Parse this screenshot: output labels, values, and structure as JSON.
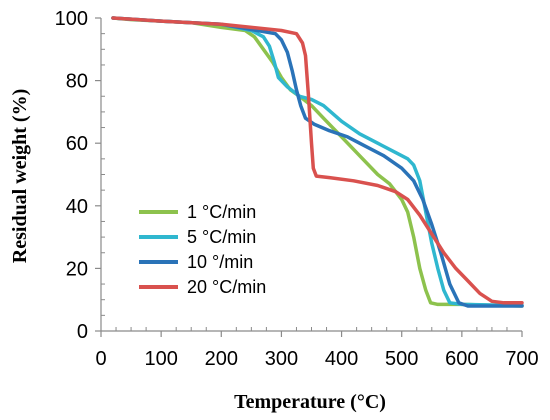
{
  "chart_data": {
    "type": "line",
    "title": "",
    "xlabel": "Temperature (°C)",
    "ylabel": "Residual weight (%)",
    "xlim": [
      0,
      700
    ],
    "ylim": [
      0,
      100
    ],
    "x_ticks": [
      0,
      100,
      200,
      300,
      400,
      500,
      600,
      700
    ],
    "y_ticks": [
      0,
      20,
      40,
      60,
      80,
      100
    ],
    "x_tick_labels": [
      "0",
      "100",
      "200",
      "300",
      "400",
      "500",
      "600",
      "700"
    ],
    "y_tick_labels": [
      "0",
      "20",
      "40",
      "60",
      "80",
      "100"
    ],
    "grid": false,
    "legend_position": "lower-left",
    "series": [
      {
        "name": "1 °C/min",
        "color": "#8dc24d",
        "points": [
          [
            20,
            100
          ],
          [
            50,
            99.5
          ],
          [
            100,
            99
          ],
          [
            150,
            98.5
          ],
          [
            200,
            97
          ],
          [
            240,
            96
          ],
          [
            255,
            94
          ],
          [
            270,
            90
          ],
          [
            285,
            86
          ],
          [
            300,
            81
          ],
          [
            315,
            77
          ],
          [
            330,
            75
          ],
          [
            350,
            72
          ],
          [
            370,
            68
          ],
          [
            400,
            62
          ],
          [
            430,
            56
          ],
          [
            460,
            50
          ],
          [
            480,
            47
          ],
          [
            500,
            42
          ],
          [
            510,
            38
          ],
          [
            520,
            30
          ],
          [
            530,
            20
          ],
          [
            540,
            13
          ],
          [
            548,
            9
          ],
          [
            560,
            8.5
          ],
          [
            600,
            8.5
          ],
          [
            650,
            8.2
          ],
          [
            700,
            8
          ]
        ]
      },
      {
        "name": "5 °C/min",
        "color": "#2fb7cf",
        "points": [
          [
            20,
            100
          ],
          [
            100,
            99
          ],
          [
            200,
            98
          ],
          [
            250,
            96
          ],
          [
            270,
            94
          ],
          [
            280,
            91
          ],
          [
            288,
            86
          ],
          [
            295,
            81
          ],
          [
            310,
            78
          ],
          [
            330,
            75
          ],
          [
            350,
            74
          ],
          [
            370,
            72
          ],
          [
            400,
            67
          ],
          [
            430,
            63
          ],
          [
            460,
            60
          ],
          [
            490,
            57
          ],
          [
            510,
            55
          ],
          [
            520,
            53
          ],
          [
            530,
            48
          ],
          [
            540,
            38
          ],
          [
            550,
            28
          ],
          [
            560,
            20
          ],
          [
            570,
            13
          ],
          [
            580,
            9
          ],
          [
            600,
            8.5
          ],
          [
            650,
            8.3
          ],
          [
            700,
            8.2
          ]
        ]
      },
      {
        "name": "10 °/min",
        "color": "#2a73b8",
        "points": [
          [
            20,
            100
          ],
          [
            100,
            99
          ],
          [
            200,
            98
          ],
          [
            260,
            96
          ],
          [
            290,
            95
          ],
          [
            300,
            93
          ],
          [
            310,
            89
          ],
          [
            318,
            83
          ],
          [
            325,
            77
          ],
          [
            332,
            72
          ],
          [
            340,
            68
          ],
          [
            355,
            66
          ],
          [
            380,
            64
          ],
          [
            410,
            62
          ],
          [
            440,
            59
          ],
          [
            470,
            56
          ],
          [
            500,
            52
          ],
          [
            520,
            48
          ],
          [
            535,
            42
          ],
          [
            550,
            34
          ],
          [
            565,
            25
          ],
          [
            580,
            15
          ],
          [
            595,
            9
          ],
          [
            610,
            8
          ],
          [
            650,
            8
          ],
          [
            700,
            8
          ]
        ]
      },
      {
        "name": "20 °C/min",
        "color": "#d9514e",
        "points": [
          [
            20,
            100
          ],
          [
            100,
            99
          ],
          [
            200,
            98
          ],
          [
            250,
            97
          ],
          [
            300,
            96
          ],
          [
            325,
            95
          ],
          [
            335,
            92
          ],
          [
            340,
            88
          ],
          [
            345,
            75
          ],
          [
            350,
            60
          ],
          [
            353,
            52
          ],
          [
            358,
            49.5
          ],
          [
            380,
            49
          ],
          [
            420,
            48
          ],
          [
            460,
            46.5
          ],
          [
            490,
            44.5
          ],
          [
            510,
            42
          ],
          [
            530,
            37
          ],
          [
            550,
            31
          ],
          [
            570,
            25
          ],
          [
            590,
            20
          ],
          [
            610,
            16
          ],
          [
            630,
            12
          ],
          [
            650,
            9.5
          ],
          [
            670,
            9
          ],
          [
            700,
            9
          ]
        ]
      }
    ]
  }
}
